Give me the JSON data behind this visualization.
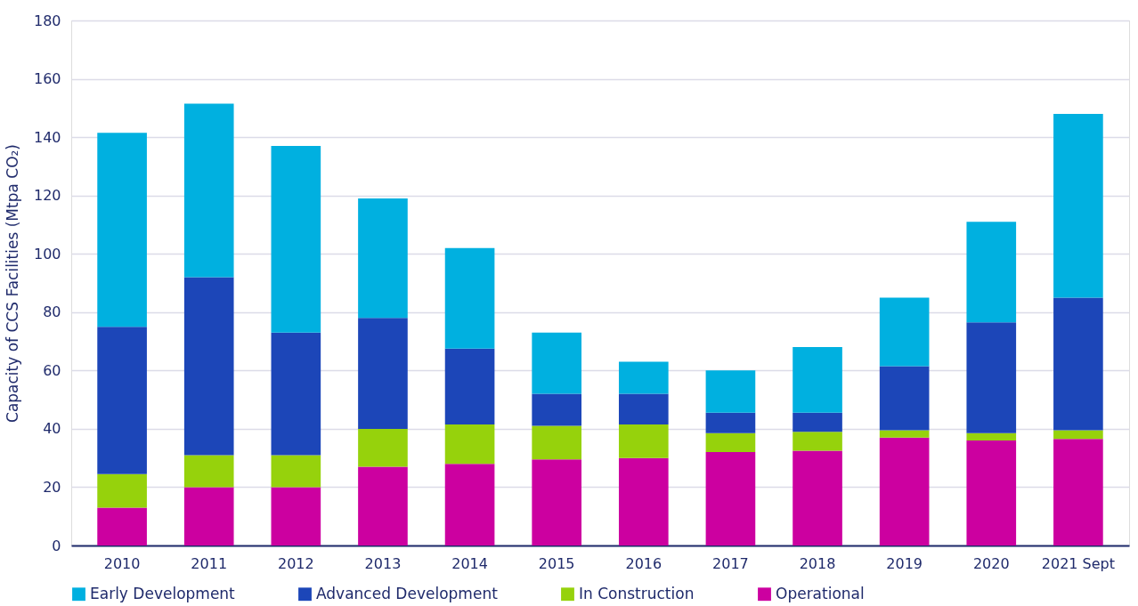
{
  "chart_data": {
    "type": "bar",
    "stacked": true,
    "ylabel": "Capacity of CCS Facilities (Mtpa CO₂)",
    "categories": [
      "2010",
      "2011",
      "2012",
      "2013",
      "2014",
      "2015",
      "2016",
      "2017",
      "2018",
      "2019",
      "2020",
      "2021 Sept"
    ],
    "series": [
      {
        "name": "Operational",
        "color": "#cc00a0",
        "values": [
          13,
          20,
          20,
          27,
          28,
          29.5,
          30,
          32,
          32.5,
          37,
          36,
          36.5
        ]
      },
      {
        "name": "In Construction",
        "color": "#96d20c",
        "values": [
          11.5,
          11,
          11,
          13,
          13.5,
          11.5,
          11.5,
          6.5,
          6.5,
          2.5,
          2.5,
          3
        ]
      },
      {
        "name": "Advanced Development",
        "color": "#1c46b8",
        "values": [
          50.5,
          61,
          42,
          38,
          26,
          11,
          10.5,
          7,
          6.5,
          22,
          38,
          45.5
        ]
      },
      {
        "name": "Early Development",
        "color": "#00b0e0",
        "values": [
          66.5,
          59.5,
          64,
          41,
          34.5,
          21,
          11,
          14.5,
          22.5,
          23.5,
          34.5,
          63
        ]
      }
    ],
    "ylim": [
      0,
      180
    ],
    "yticks": [
      0,
      20,
      40,
      60,
      80,
      100,
      120,
      140,
      160,
      180
    ],
    "grid": "y",
    "legend": "bottom"
  }
}
